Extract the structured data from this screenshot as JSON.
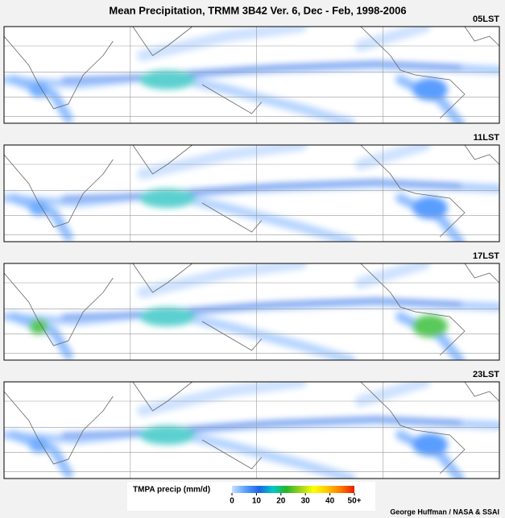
{
  "title": "Mean Precipitation, TRMM 3B42 Ver. 6, Dec - Feb, 1998-2006",
  "panels": [
    {
      "label": "05LST"
    },
    {
      "label": "11LST"
    },
    {
      "label": "17LST"
    },
    {
      "label": "23LST"
    }
  ],
  "colorbar": {
    "label": "TMPA precip (mm/d)",
    "lim": [
      0,
      50
    ],
    "ticks": [
      0,
      10,
      20,
      30,
      40,
      {
        "value": 50,
        "label": "50+"
      }
    ],
    "colors": [
      "#c8e0ff",
      "#5aa0ff",
      "#1e64e6",
      "#00c8c8",
      "#28b428",
      "#9bd21e",
      "#ffff00",
      "#ffc800",
      "#ff7800",
      "#e61e00"
    ]
  },
  "credit": "George Huffman / NASA & SSAI"
}
